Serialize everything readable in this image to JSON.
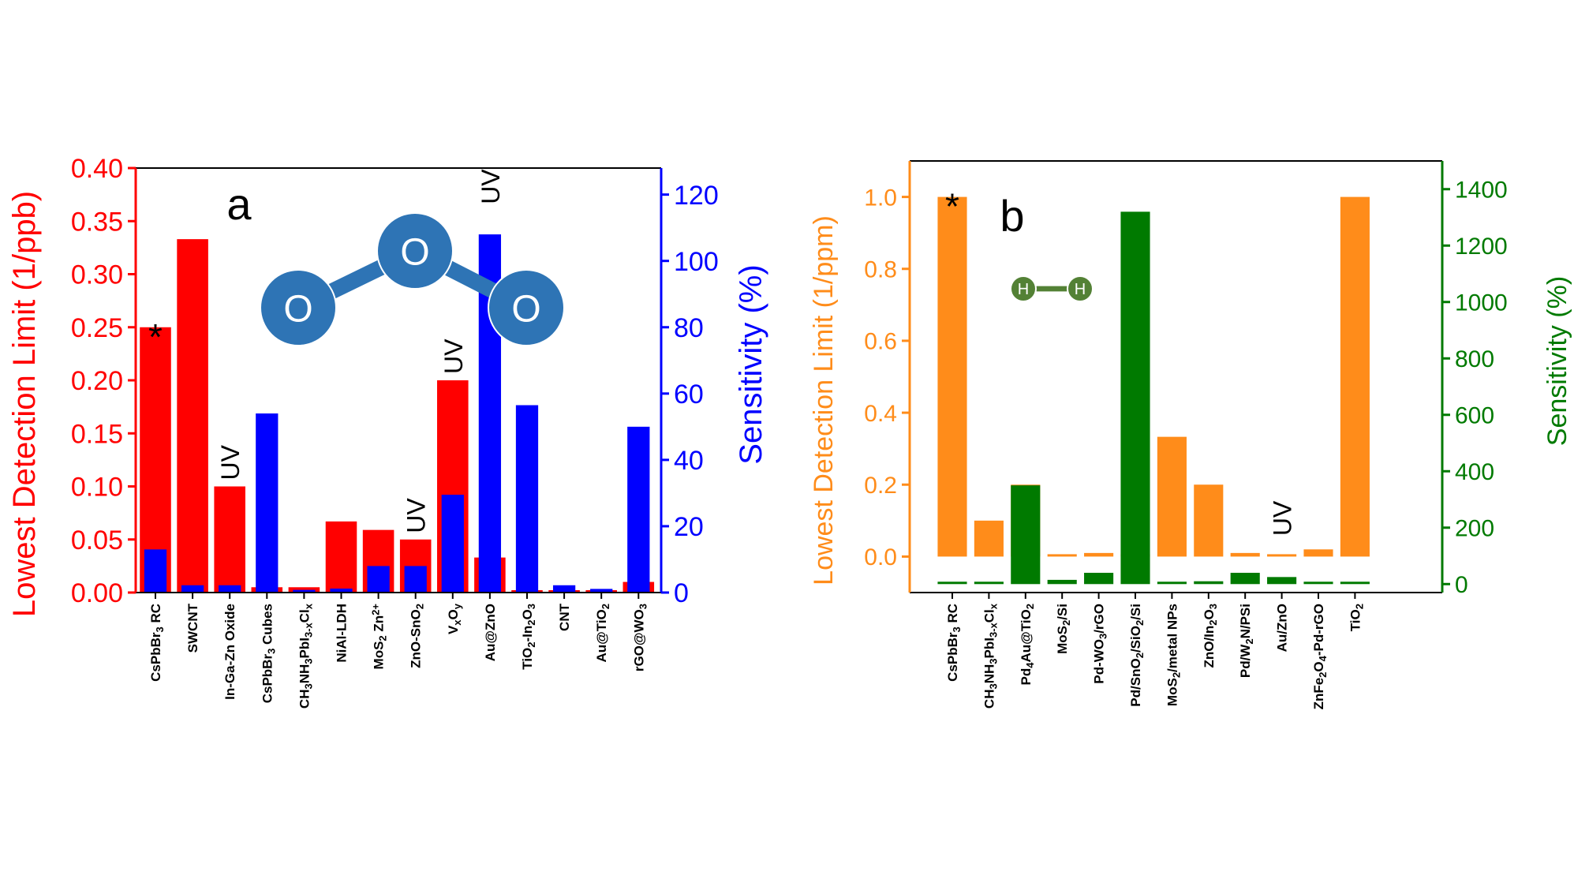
{
  "chart_data": [
    {
      "type": "bar",
      "panel_label": "a",
      "categories": [
        "CsPbBr3 RC",
        "SWCNT",
        "In-Ga-Zn Oxide",
        "CsPbBr3 Cubes",
        "CH3NH3PbI3-xClx",
        "NiAl-LDH",
        "MoS2 Zn2+",
        "ZnO-SnO2",
        "VxOy",
        "Au@ZnO",
        "TiO2-In2O3",
        "CNT",
        "Au@TiO2",
        "rGO@WO3"
      ],
      "category_labels": [
        [
          [
            "CsPbBr",
            "n"
          ],
          [
            "3",
            "sub"
          ],
          [
            " RC",
            "n"
          ]
        ],
        [
          [
            "SWCNT",
            "n"
          ]
        ],
        [
          [
            "In-Ga-Zn Oxide",
            "n"
          ]
        ],
        [
          [
            "CsPbBr",
            "n"
          ],
          [
            "3",
            "sub"
          ],
          [
            " Cubes",
            "n"
          ]
        ],
        [
          [
            "CH",
            "n"
          ],
          [
            "3",
            "sub"
          ],
          [
            "NH",
            "n"
          ],
          [
            "3",
            "sub"
          ],
          [
            "PbI",
            "n"
          ],
          [
            "3-x",
            "sub"
          ],
          [
            "Cl",
            "n"
          ],
          [
            "x",
            "sub"
          ]
        ],
        [
          [
            "NiAl-LDH",
            "n"
          ]
        ],
        [
          [
            "MoS",
            "n"
          ],
          [
            "2",
            "sub"
          ],
          [
            " Zn",
            "n"
          ],
          [
            "2+",
            "sup"
          ]
        ],
        [
          [
            "ZnO-SnO",
            "n"
          ],
          [
            "2",
            "sub"
          ]
        ],
        [
          [
            "V",
            "n"
          ],
          [
            "x",
            "sub"
          ],
          [
            "O",
            "n"
          ],
          [
            "y",
            "sub"
          ]
        ],
        [
          [
            "Au@ZnO",
            "n"
          ]
        ],
        [
          [
            "TiO",
            "n"
          ],
          [
            "2",
            "sub"
          ],
          [
            "-In",
            "n"
          ],
          [
            "2",
            "sub"
          ],
          [
            "O",
            "n"
          ],
          [
            "3",
            "sub"
          ]
        ],
        [
          [
            "CNT",
            "n"
          ]
        ],
        [
          [
            "Au@TiO",
            "n"
          ],
          [
            "2",
            "sub"
          ]
        ],
        [
          [
            "rGO@WO",
            "n"
          ],
          [
            "3",
            "sub"
          ]
        ]
      ],
      "series": [
        {
          "name": "Lowest Detection Limit (1/ppb)",
          "axis": "left",
          "color": "#ff0000",
          "width": 0.84,
          "values": [
            0.25,
            0.333,
            0.1,
            0.005,
            0.005,
            0.067,
            0.059,
            0.05,
            0.2,
            0.033,
            0.0,
            0.0,
            0.0,
            0.01
          ]
        },
        {
          "name": "Sensitivity (%)",
          "axis": "right",
          "color": "#0000ff",
          "width": 0.6,
          "values": [
            13,
            2.2,
            2.2,
            54,
            0.8,
            1.2,
            8,
            8,
            29.5,
            108,
            56.5,
            2.2,
            1.1,
            50
          ]
        }
      ],
      "annotations": [
        {
          "text": "*",
          "category": "CsPbBr3 RC",
          "value": 0.25
        },
        {
          "text": "UV",
          "category": "In-Ga-Zn Oxide",
          "value": 0.1
        },
        {
          "text": "UV",
          "category": "ZnO-SnO2",
          "value": 0.05
        },
        {
          "text": "UV",
          "category": "VxOy",
          "value": 0.2
        },
        {
          "text": "UV",
          "category": "Au@ZnO",
          "value": 0.36
        }
      ],
      "ylabel_left": "Lowest Detection Limit (1/ppb)",
      "ylabel_right": "Sensitivity (%)",
      "ylim_left": [
        0,
        0.4
      ],
      "ylim_right": [
        0,
        128
      ],
      "yticks_left": [
        "0.00",
        "0.05",
        "0.10",
        "0.15",
        "0.20",
        "0.25",
        "0.30",
        "0.35",
        "0.40"
      ],
      "yticks_right": [
        "0",
        "20",
        "40",
        "60",
        "80",
        "100",
        "120"
      ],
      "left_color": "#ff0000",
      "right_color": "#0000ff",
      "molecule": {
        "atoms": [
          "O",
          "O",
          "O"
        ],
        "color": "#2e74b5"
      }
    },
    {
      "type": "bar",
      "panel_label": "b",
      "categories": [
        "CsPbBr3 RC",
        "CH3NH3PbI3-xClx",
        "Pd4Au@TiO2",
        "MoS2/Si",
        "Pd-WO3/rGO",
        "Pd/SnO2/SiO2/Si",
        "MoS2/metal NPs",
        "ZnO/In2O3",
        "Pd/W2N/PSi",
        "Au/ZnO",
        "ZnFe2O4-Pd-rGO",
        "TiO2"
      ],
      "category_labels": [
        [
          [
            "CsPbBr",
            "n"
          ],
          [
            "3",
            "sub"
          ],
          [
            " RC",
            "n"
          ]
        ],
        [
          [
            "CH",
            "n"
          ],
          [
            "3",
            "sub"
          ],
          [
            "NH",
            "n"
          ],
          [
            "3",
            "sub"
          ],
          [
            "PbI",
            "n"
          ],
          [
            "3-x",
            "sub"
          ],
          [
            "Cl",
            "n"
          ],
          [
            "x",
            "sub"
          ]
        ],
        [
          [
            "Pd",
            "n"
          ],
          [
            "4",
            "sub"
          ],
          [
            "Au@TiO",
            "n"
          ],
          [
            "2",
            "sub"
          ]
        ],
        [
          [
            "MoS",
            "n"
          ],
          [
            "2",
            "sub"
          ],
          [
            "/Si",
            "n"
          ]
        ],
        [
          [
            "Pd-WO",
            "n"
          ],
          [
            "3",
            "sub"
          ],
          [
            "/rGO",
            "n"
          ]
        ],
        [
          [
            "Pd/SnO",
            "n"
          ],
          [
            "2",
            "sub"
          ],
          [
            "/SiO",
            "n"
          ],
          [
            "2",
            "sub"
          ],
          [
            "/Si",
            "n"
          ]
        ],
        [
          [
            "MoS",
            "n"
          ],
          [
            "2",
            "sub"
          ],
          [
            "/metal NPs",
            "n"
          ]
        ],
        [
          [
            "ZnO/In",
            "n"
          ],
          [
            "2",
            "sub"
          ],
          [
            "O",
            "n"
          ],
          [
            "3",
            "sub"
          ]
        ],
        [
          [
            "Pd/W",
            "n"
          ],
          [
            "2",
            "sub"
          ],
          [
            "N/PSi",
            "n"
          ]
        ],
        [
          [
            "Au/ZnO",
            "n"
          ]
        ],
        [
          [
            "ZnFe",
            "n"
          ],
          [
            "2",
            "sub"
          ],
          [
            "O",
            "n"
          ],
          [
            "4",
            "sub"
          ],
          [
            "-Pd-rGO",
            "n"
          ]
        ],
        [
          [
            "TiO",
            "n"
          ],
          [
            "2",
            "sub"
          ]
        ]
      ],
      "series": [
        {
          "name": "Lowest Detection Limit (1/ppm)",
          "axis": "left",
          "color": "#ff8c1a",
          "width": 0.8,
          "values": [
            1.0,
            0.1,
            0.2,
            0.0,
            0.01,
            0.0,
            0.333,
            0.2,
            0.01,
            0.0,
            0.02,
            1.0
          ]
        },
        {
          "name": "Sensitivity (%)",
          "axis": "right",
          "color": "#007a00",
          "width": 0.8,
          "values": [
            8,
            8,
            350,
            15,
            40,
            1320,
            8,
            10,
            40,
            25,
            8,
            8
          ]
        }
      ],
      "annotations": [
        {
          "text": "*",
          "category": "CsPbBr3 RC",
          "value": 1.0
        },
        {
          "text": "UV",
          "category": "Au/ZnO",
          "value": 0.04
        }
      ],
      "ylabel_left": "Lowest Detection Limit (1/ppm)",
      "ylabel_right": "Sensitivity (%)",
      "ylim_left": [
        -0.1,
        1.1
      ],
      "ylim_right": [
        -30,
        1500
      ],
      "yticks_left": [
        "0.0",
        "0.2",
        "0.4",
        "0.6",
        "0.8",
        "1.0"
      ],
      "yticks_right": [
        "0",
        "200",
        "400",
        "600",
        "800",
        "1000",
        "1200",
        "1400"
      ],
      "left_color": "#ff8c1a",
      "right_color": "#007a00",
      "molecule": {
        "atoms": [
          "H",
          "H"
        ],
        "color": "#538135"
      }
    }
  ]
}
